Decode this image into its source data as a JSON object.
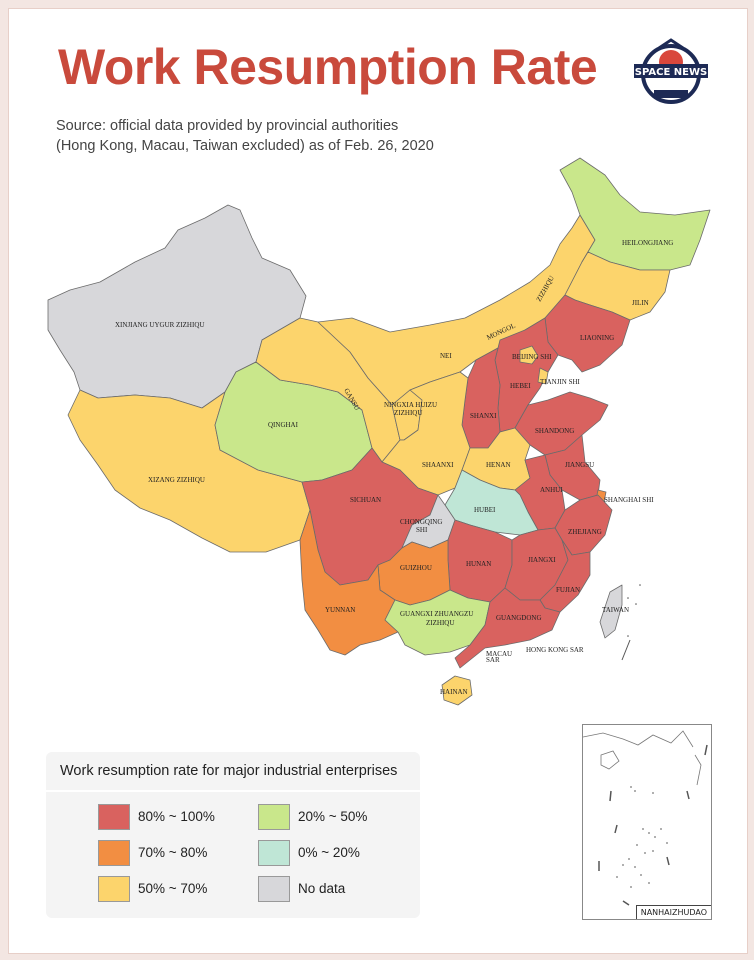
{
  "title": "Work Resumption Rate",
  "source_line1": "Source: official data provided by provincial authorities",
  "source_line2": "(Hong Kong, Macau, Taiwan excluded) as of Feb. 26, 2020",
  "logo_text": "SPACE NEWS",
  "colors": {
    "c80_100": "#d9625f",
    "c70_80": "#f28e42",
    "c50_70": "#fcd46c",
    "c20_50": "#c9e78b",
    "c0_20": "#bfe6d6",
    "nodata": "#d7d7da"
  },
  "legend": {
    "title": "Work resumption rate for major industrial enterprises",
    "items": [
      {
        "label": "80% ~ 100%",
        "color": "#d9625f"
      },
      {
        "label": "20% ~ 50%",
        "color": "#c9e78b"
      },
      {
        "label": "70% ~ 80%",
        "color": "#f28e42"
      },
      {
        "label": "0% ~ 20%",
        "color": "#bfe6d6"
      },
      {
        "label": "50% ~ 70%",
        "color": "#fcd46c"
      },
      {
        "label": "No data",
        "color": "#d7d7da"
      }
    ]
  },
  "provinces": {
    "xinjiang": "XINJIANG  UYGUR  ZIZHIQU",
    "xizang": "XIZANG  ZIZHIQU",
    "qinghai": "QINGHAI",
    "gansu": "GANSU",
    "nei_mongol_1": "NEI",
    "nei_mongol_2": "MONGOL",
    "nei_mongol_3": "ZIZHIQU",
    "heilongjiang": "HEILONGJIANG",
    "jilin": "JILIN",
    "liaoning": "LIAONING",
    "beijing": "BEIJING SHI",
    "tianjin": "TIANJIN SHI",
    "hebei": "HEBEI",
    "shanxi": "SHANXI",
    "shandong": "SHANDONG",
    "ningxia_1": "NINGXIA HUIZU",
    "ningxia_2": "ZIZHIQU",
    "shaanxi": "SHAANXI",
    "henan": "HENAN",
    "jiangsu": "JIANGSU",
    "anhui": "ANHUI",
    "shanghai": "SHANGHAI SHI",
    "hubei": "HUBEI",
    "sichuan": "SICHUAN",
    "chongqing_1": "CHONGQING",
    "chongqing_2": "SHI",
    "zhejiang": "ZHEJIANG",
    "hunan": "HUNAN",
    "jiangxi": "JIANGXI",
    "fujian": "FUJIAN",
    "guizhou": "GUIZHOU",
    "yunnan": "YUNNAN",
    "guangxi_1": "GUANGXI ZHUANGZU",
    "guangxi_2": "ZIZHIQU",
    "guangdong": "GUANGDONG",
    "taiwan": "TAIWAN",
    "hongkong": "HONG KONG SAR",
    "macau_1": "MACAU",
    "macau_2": "SAR",
    "hainan": "HAINAN"
  },
  "inset_label": "NANHAIZHUDAO"
}
